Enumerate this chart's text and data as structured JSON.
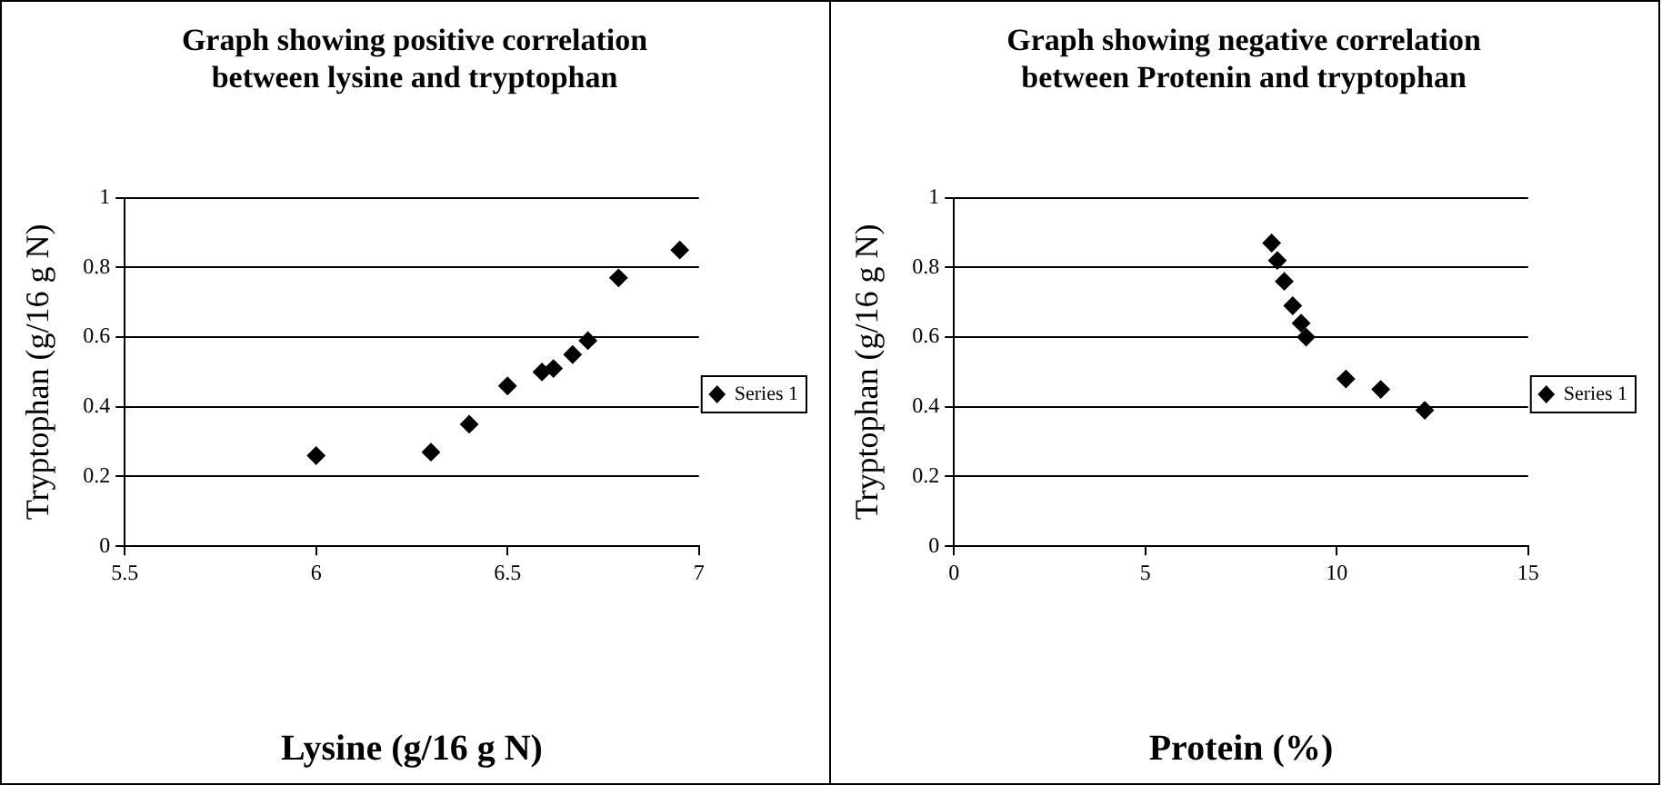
{
  "chart_data": [
    {
      "type": "scatter",
      "title": "Graph showing positive correlation between lysine and tryptophan",
      "xlabel": "Lysine (g/16 g N)",
      "ylabel": "Tryptophan (g/16 g N)",
      "x": [
        6.0,
        6.3,
        6.4,
        6.5,
        6.59,
        6.62,
        6.67,
        6.71,
        6.79,
        6.95
      ],
      "series": [
        {
          "name": "Series 1",
          "color": "#000000",
          "values": [
            0.26,
            0.27,
            0.35,
            0.46,
            0.5,
            0.51,
            0.55,
            0.59,
            0.77,
            0.85
          ]
        }
      ],
      "xlim": [
        5.5,
        7
      ],
      "xticks": [
        5.5,
        6,
        6.5,
        7
      ],
      "ylim": [
        0,
        1
      ],
      "yticks": [
        0,
        0.2,
        0.4,
        0.6,
        0.8,
        1
      ],
      "grid": "y",
      "legend": "right",
      "marker": "diamond"
    },
    {
      "type": "scatter",
      "title": "Graph showing negative correlation between Protenin and tryptophan",
      "xlabel": "Protein (%)",
      "ylabel": "Tryptophan (g/16 g N)",
      "x": [
        8.3,
        8.45,
        8.63,
        8.85,
        9.07,
        9.2,
        10.24,
        11.15,
        12.3
      ],
      "series": [
        {
          "name": "Series 1",
          "color": "#000000",
          "values": [
            0.87,
            0.82,
            0.76,
            0.69,
            0.64,
            0.6,
            0.48,
            0.45,
            0.39
          ]
        }
      ],
      "xlim": [
        0,
        15
      ],
      "xticks": [
        0,
        5,
        10,
        15
      ],
      "ylim": [
        0,
        1
      ],
      "yticks": [
        0,
        0.2,
        0.4,
        0.6,
        0.8,
        1
      ],
      "grid": "y",
      "legend": "right",
      "marker": "diamond"
    }
  ]
}
